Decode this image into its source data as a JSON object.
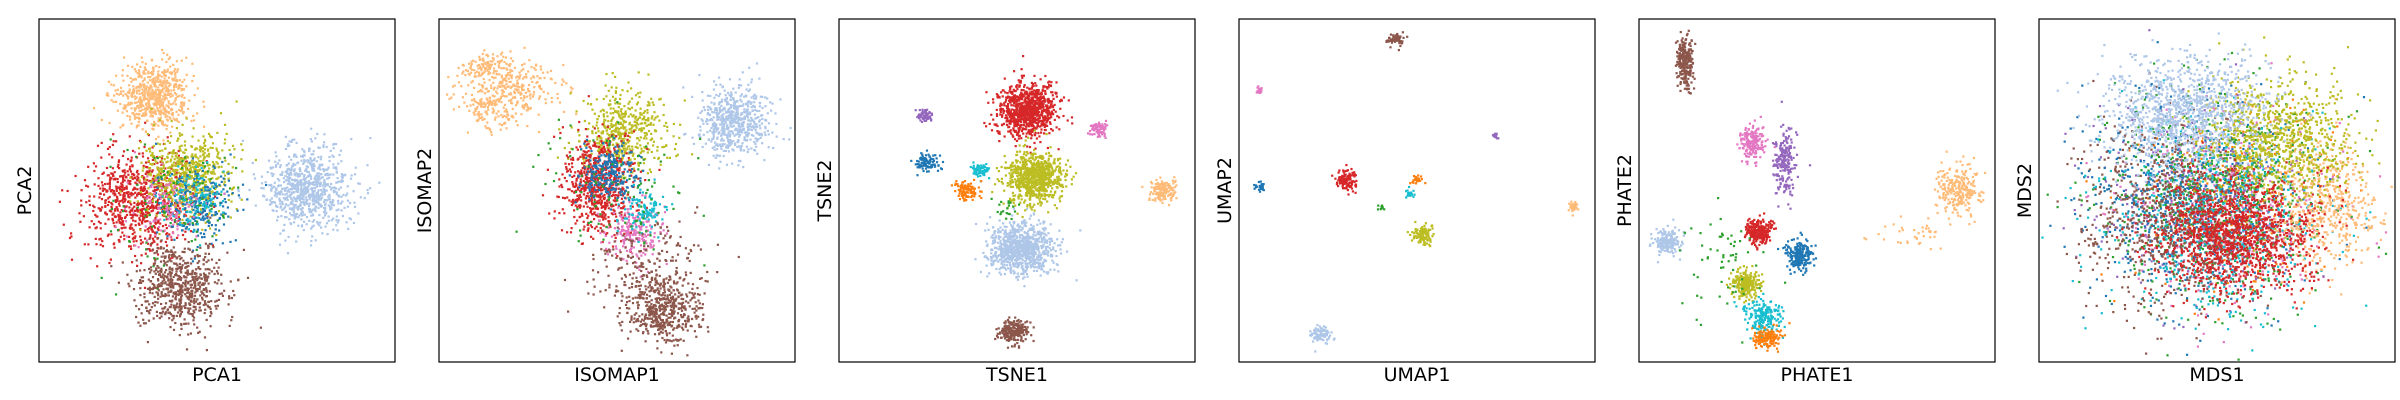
{
  "chart_data": [
    {
      "type": "scatter",
      "xlabel": "PCA1",
      "ylabel": "PCA2",
      "xlim": [
        0,
        100
      ],
      "ylim": [
        0,
        100
      ],
      "grid": false,
      "ticks": false,
      "clusters": [
        {
          "color": "#ffbb78",
          "cx": 32,
          "cy": 77,
          "sx": 5,
          "sy": 5,
          "n": 650
        },
        {
          "color": "#aec7e8",
          "cx": 75,
          "cy": 50,
          "sx": 6,
          "sy": 6,
          "n": 800
        },
        {
          "color": "#d62728",
          "cx": 28,
          "cy": 47,
          "sx": 8,
          "sy": 7,
          "n": 800
        },
        {
          "color": "#bcbd22",
          "cx": 42,
          "cy": 54,
          "sx": 6,
          "sy": 6,
          "n": 650
        },
        {
          "color": "#1f77b4",
          "cx": 45,
          "cy": 46,
          "sx": 6,
          "sy": 6,
          "n": 250
        },
        {
          "color": "#2ca02c",
          "cx": 38,
          "cy": 46,
          "sx": 9,
          "sy": 9,
          "n": 100
        },
        {
          "color": "#e377c2",
          "cx": 36,
          "cy": 44,
          "sx": 5,
          "sy": 5,
          "n": 100
        },
        {
          "color": "#17becf",
          "cx": 44,
          "cy": 48,
          "sx": 4,
          "sy": 4,
          "n": 100
        },
        {
          "color": "#8c564b",
          "cx": 40,
          "cy": 22,
          "sx": 6,
          "sy": 6,
          "n": 650
        }
      ]
    },
    {
      "type": "scatter",
      "xlabel": "ISOMAP1",
      "ylabel": "ISOMAP2",
      "xlim": [
        0,
        100
      ],
      "ylim": [
        0,
        100
      ],
      "grid": false,
      "ticks": false,
      "clusters": [
        {
          "color": "#ffbb78",
          "cx": 20,
          "cy": 80,
          "sx": 7,
          "sy": 4,
          "n": 300
        },
        {
          "color": "#ffbb78",
          "cx": 15,
          "cy": 73,
          "sx": 4,
          "sy": 3,
          "n": 100
        },
        {
          "color": "#ffbb78",
          "cx": 14,
          "cy": 86,
          "sx": 3,
          "sy": 2,
          "n": 100
        },
        {
          "color": "#aec7e8",
          "cx": 83,
          "cy": 70,
          "sx": 5,
          "sy": 5,
          "n": 600
        },
        {
          "color": "#bcbd22",
          "cx": 52,
          "cy": 67,
          "sx": 6,
          "sy": 6,
          "n": 500
        },
        {
          "color": "#d62728",
          "cx": 45,
          "cy": 52,
          "sx": 5,
          "sy": 7,
          "n": 700
        },
        {
          "color": "#1f77b4",
          "cx": 48,
          "cy": 55,
          "sx": 4,
          "sy": 4,
          "n": 250
        },
        {
          "color": "#e377c2",
          "cx": 55,
          "cy": 38,
          "sx": 4,
          "sy": 4,
          "n": 200
        },
        {
          "color": "#17becf",
          "cx": 58,
          "cy": 44,
          "sx": 3,
          "sy": 3,
          "n": 100
        },
        {
          "color": "#2ca02c",
          "cx": 50,
          "cy": 50,
          "sx": 10,
          "sy": 10,
          "n": 100
        },
        {
          "color": "#8c564b",
          "cx": 63,
          "cy": 15,
          "sx": 5,
          "sy": 5,
          "n": 500
        },
        {
          "color": "#8c564b",
          "cx": 58,
          "cy": 28,
          "sx": 9,
          "sy": 6,
          "n": 200
        }
      ]
    },
    {
      "type": "scatter",
      "xlabel": "TSNE1",
      "ylabel": "TSNE2",
      "xlim": [
        0,
        100
      ],
      "ylim": [
        0,
        100
      ],
      "grid": false,
      "ticks": false,
      "clusters": [
        {
          "color": "#d62728",
          "cx": 53,
          "cy": 73,
          "sx": 4,
          "sy": 4,
          "n": 900
        },
        {
          "color": "#bcbd22",
          "cx": 55,
          "cy": 54,
          "sx": 4,
          "sy": 3.5,
          "n": 800
        },
        {
          "color": "#aec7e8",
          "cx": 51,
          "cy": 33,
          "sx": 4.5,
          "sy": 3.5,
          "n": 900
        },
        {
          "color": "#8c564b",
          "cx": 49,
          "cy": 9,
          "sx": 2.2,
          "sy": 1.8,
          "n": 220
        },
        {
          "color": "#ffbb78",
          "cx": 91,
          "cy": 50,
          "sx": 1.8,
          "sy": 1.5,
          "n": 160
        },
        {
          "color": "#e377c2",
          "cx": 73,
          "cy": 68,
          "sx": 1.2,
          "sy": 1.2,
          "n": 70
        },
        {
          "color": "#9467bd",
          "cx": 24,
          "cy": 72,
          "sx": 1,
          "sy": 1,
          "n": 60
        },
        {
          "color": "#1f77b4",
          "cx": 25,
          "cy": 58,
          "sx": 1.5,
          "sy": 1.3,
          "n": 100
        },
        {
          "color": "#17becf",
          "cx": 40,
          "cy": 56,
          "sx": 1.2,
          "sy": 1.2,
          "n": 60
        },
        {
          "color": "#ff7f0e",
          "cx": 36,
          "cy": 50,
          "sx": 1.6,
          "sy": 1.4,
          "n": 110
        },
        {
          "color": "#2ca02c",
          "cx": 47,
          "cy": 45,
          "sx": 2,
          "sy": 2,
          "n": 20
        }
      ]
    },
    {
      "type": "scatter",
      "xlabel": "UMAP1",
      "ylabel": "UMAP2",
      "xlim": [
        0,
        100
      ],
      "ylim": [
        0,
        100
      ],
      "grid": false,
      "ticks": false,
      "clusters": [
        {
          "color": "#8c564b",
          "cx": 44,
          "cy": 94,
          "sx": 1.2,
          "sy": 1,
          "n": 60
        },
        {
          "color": "#e377c2",
          "cx": 6,
          "cy": 79,
          "sx": 0.6,
          "sy": 0.6,
          "n": 20
        },
        {
          "color": "#9467bd",
          "cx": 72,
          "cy": 66,
          "sx": 0.5,
          "sy": 0.5,
          "n": 15
        },
        {
          "color": "#d62728",
          "cx": 30,
          "cy": 53,
          "sx": 1.5,
          "sy": 1.5,
          "n": 120
        },
        {
          "color": "#1f77b4",
          "cx": 6,
          "cy": 51,
          "sx": 0.7,
          "sy": 0.7,
          "n": 25
        },
        {
          "color": "#ff7f0e",
          "cx": 50,
          "cy": 53,
          "sx": 0.7,
          "sy": 0.7,
          "n": 25
        },
        {
          "color": "#17becf",
          "cx": 48,
          "cy": 49,
          "sx": 0.6,
          "sy": 0.9,
          "n": 20
        },
        {
          "color": "#ffbb78",
          "cx": 94,
          "cy": 45,
          "sx": 0.8,
          "sy": 0.8,
          "n": 30
        },
        {
          "color": "#2ca02c",
          "cx": 40,
          "cy": 45,
          "sx": 0.5,
          "sy": 0.5,
          "n": 8
        },
        {
          "color": "#bcbd22",
          "cx": 52,
          "cy": 37,
          "sx": 1.4,
          "sy": 1.4,
          "n": 110
        },
        {
          "color": "#aec7e8",
          "cx": 23,
          "cy": 8,
          "sx": 1.3,
          "sy": 1.3,
          "n": 90
        }
      ]
    },
    {
      "type": "scatter",
      "xlabel": "PHATE1",
      "ylabel": "PHATE2",
      "xlim": [
        0,
        100
      ],
      "ylim": [
        0,
        100
      ],
      "grid": false,
      "ticks": false,
      "clusters": [
        {
          "color": "#8c564b",
          "cx": 13,
          "cy": 87,
          "sx": 1.2,
          "sy": 4,
          "n": 250
        },
        {
          "color": "#ffbb78",
          "cx": 90,
          "cy": 50,
          "sx": 3,
          "sy": 3.5,
          "n": 250
        },
        {
          "color": "#ffbb78",
          "cx": 78,
          "cy": 38,
          "sx": 6,
          "sy": 2,
          "n": 40
        },
        {
          "color": "#9467bd",
          "cx": 41,
          "cy": 58,
          "sx": 1.4,
          "sy": 4.5,
          "n": 200
        },
        {
          "color": "#e377c2",
          "cx": 32,
          "cy": 64,
          "sx": 1.8,
          "sy": 2.5,
          "n": 180
        },
        {
          "color": "#d62728",
          "cx": 34,
          "cy": 38,
          "sx": 1.8,
          "sy": 1.8,
          "n": 250
        },
        {
          "color": "#1f77b4",
          "cx": 45,
          "cy": 31,
          "sx": 1.8,
          "sy": 2.2,
          "n": 200
        },
        {
          "color": "#aec7e8",
          "cx": 8,
          "cy": 35,
          "sx": 1.8,
          "sy": 1.8,
          "n": 200
        },
        {
          "color": "#bcbd22",
          "cx": 30,
          "cy": 23,
          "sx": 2,
          "sy": 2,
          "n": 250
        },
        {
          "color": "#17becf",
          "cx": 35,
          "cy": 13,
          "sx": 2.5,
          "sy": 2.5,
          "n": 200
        },
        {
          "color": "#ff7f0e",
          "cx": 36,
          "cy": 7,
          "sx": 2,
          "sy": 1.5,
          "n": 150
        },
        {
          "color": "#2ca02c",
          "cx": 25,
          "cy": 28,
          "sx": 6,
          "sy": 8,
          "n": 60
        }
      ]
    },
    {
      "type": "scatter",
      "xlabel": "MDS1",
      "ylabel": "MDS2",
      "xlim": [
        0,
        100
      ],
      "ylim": [
        0,
        100
      ],
      "grid": false,
      "ticks": false,
      "clusters": [
        {
          "color": "#ff7f0e",
          "cx": 55,
          "cy": 50,
          "sx": 14,
          "sy": 13,
          "n": 300
        },
        {
          "color": "#e377c2",
          "cx": 52,
          "cy": 46,
          "sx": 14,
          "sy": 14,
          "n": 400
        },
        {
          "color": "#9467bd",
          "cx": 45,
          "cy": 48,
          "sx": 14,
          "sy": 14,
          "n": 400
        },
        {
          "color": "#1f77b4",
          "cx": 42,
          "cy": 48,
          "sx": 15,
          "sy": 15,
          "n": 700
        },
        {
          "color": "#2ca02c",
          "cx": 50,
          "cy": 48,
          "sx": 15,
          "sy": 15,
          "n": 700
        },
        {
          "color": "#17becf",
          "cx": 50,
          "cy": 42,
          "sx": 15,
          "sy": 14,
          "n": 600
        },
        {
          "color": "#8c564b",
          "cx": 35,
          "cy": 42,
          "sx": 13,
          "sy": 13,
          "n": 700
        },
        {
          "color": "#ffbb78",
          "cx": 80,
          "cy": 45,
          "sx": 7,
          "sy": 9,
          "n": 500
        },
        {
          "color": "#bcbd22",
          "cx": 67,
          "cy": 65,
          "sx": 11,
          "sy": 9,
          "n": 900
        },
        {
          "color": "#aec7e8",
          "cx": 40,
          "cy": 73,
          "sx": 11,
          "sy": 8,
          "n": 1100
        },
        {
          "color": "#d62728",
          "cx": 55,
          "cy": 37,
          "sx": 11,
          "sy": 8,
          "n": 1300
        }
      ]
    }
  ]
}
